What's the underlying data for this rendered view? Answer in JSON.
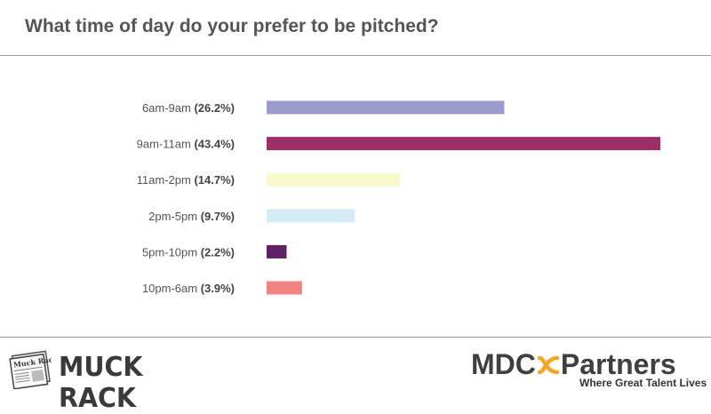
{
  "title": "What time of day do your prefer to be pitched?",
  "chart_data": {
    "type": "bar",
    "orientation": "horizontal",
    "categories": [
      "6am-9am",
      "9am-11am",
      "11am-2pm",
      "2pm-5pm",
      "5pm-10pm",
      "10pm-6am"
    ],
    "value_labels": [
      "(26.2%)",
      "(43.4%)",
      "(14.7%)",
      "(9.7%)",
      "(2.2%)",
      "(3.9%)"
    ],
    "values": [
      26.2,
      43.4,
      14.7,
      9.7,
      2.2,
      3.9
    ],
    "colors": [
      "#9a9acc",
      "#9b2f66",
      "#fbf8cc",
      "#d5ecf7",
      "#5e2166",
      "#f08282"
    ],
    "xlim": [
      0,
      43.4
    ],
    "title": "What time of day do your prefer to be pitched?",
    "xlabel": "",
    "ylabel": "",
    "grid": false,
    "legend": "none"
  },
  "logos": {
    "left": {
      "name": "MUCK RACK",
      "icon": "newspaper-icon",
      "icon_text": "Muck Rack"
    },
    "right": {
      "name_part1": "MDC",
      "name_part2": "Partners",
      "icon": "infinity-icon",
      "tagline": "Where Great Talent Lives",
      "accent": "#f5a623"
    }
  }
}
